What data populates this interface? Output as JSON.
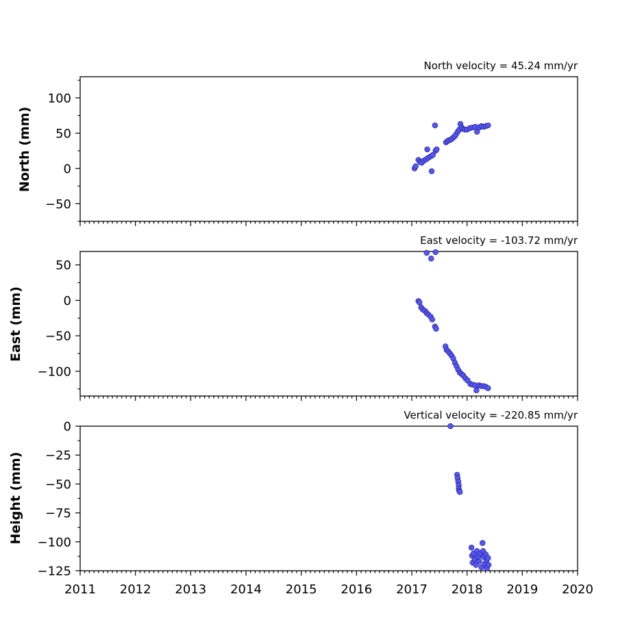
{
  "chart_data": [
    {
      "type": "scatter",
      "panel": "north",
      "title": "North velocity = 45.24 mm/yr",
      "ylabel": "North (mm)",
      "xlim": [
        2011,
        2020
      ],
      "ylim": [
        -75,
        130
      ],
      "yticks": [
        100,
        50,
        0,
        -50
      ],
      "ytick_labels": [
        "100",
        "50",
        "0",
        "−50"
      ],
      "grid": false,
      "color": "#5555ff",
      "points": [
        [
          2017.05,
          0
        ],
        [
          2017.07,
          3
        ],
        [
          2017.12,
          12
        ],
        [
          2017.15,
          9
        ],
        [
          2017.18,
          8
        ],
        [
          2017.22,
          11
        ],
        [
          2017.26,
          13
        ],
        [
          2017.28,
          27
        ],
        [
          2017.3,
          15
        ],
        [
          2017.34,
          17
        ],
        [
          2017.36,
          -4
        ],
        [
          2017.38,
          19
        ],
        [
          2017.42,
          61
        ],
        [
          2017.43,
          25
        ],
        [
          2017.45,
          27
        ],
        [
          2017.62,
          37
        ],
        [
          2017.65,
          39
        ],
        [
          2017.68,
          40
        ],
        [
          2017.71,
          41
        ],
        [
          2017.74,
          43
        ],
        [
          2017.77,
          45
        ],
        [
          2017.8,
          48
        ],
        [
          2017.83,
          52
        ],
        [
          2017.86,
          55
        ],
        [
          2017.88,
          63
        ],
        [
          2017.9,
          58
        ],
        [
          2017.93,
          56
        ],
        [
          2017.96,
          55
        ],
        [
          2018.0,
          55
        ],
        [
          2018.05,
          57
        ],
        [
          2018.1,
          58
        ],
        [
          2018.15,
          59
        ],
        [
          2018.18,
          52
        ],
        [
          2018.22,
          58
        ],
        [
          2018.26,
          60
        ],
        [
          2018.3,
          59
        ],
        [
          2018.34,
          60
        ],
        [
          2018.38,
          61
        ]
      ]
    },
    {
      "type": "scatter",
      "panel": "east",
      "title": "East velocity = -103.72 mm/yr",
      "ylabel": "East (mm)",
      "xlim": [
        2011,
        2020
      ],
      "ylim": [
        -135,
        69
      ],
      "yticks": [
        50,
        0,
        -50,
        -100
      ],
      "ytick_labels": [
        "50",
        "0",
        "−50",
        "−100"
      ],
      "grid": false,
      "color": "#5555ff",
      "points": [
        [
          2017.27,
          67
        ],
        [
          2017.35,
          59
        ],
        [
          2017.43,
          68
        ],
        [
          2017.12,
          -1
        ],
        [
          2017.14,
          -3
        ],
        [
          2017.17,
          -10
        ],
        [
          2017.2,
          -13
        ],
        [
          2017.24,
          -15
        ],
        [
          2017.27,
          -18
        ],
        [
          2017.3,
          -20
        ],
        [
          2017.34,
          -23
        ],
        [
          2017.37,
          -27
        ],
        [
          2017.42,
          -37
        ],
        [
          2017.44,
          -40
        ],
        [
          2017.61,
          -65
        ],
        [
          2017.63,
          -70
        ],
        [
          2017.66,
          -72
        ],
        [
          2017.69,
          -75
        ],
        [
          2017.72,
          -78
        ],
        [
          2017.75,
          -82
        ],
        [
          2017.78,
          -88
        ],
        [
          2017.81,
          -93
        ],
        [
          2017.84,
          -98
        ],
        [
          2017.87,
          -102
        ],
        [
          2017.9,
          -104
        ],
        [
          2017.93,
          -106
        ],
        [
          2017.97,
          -110
        ],
        [
          2018.01,
          -113
        ],
        [
          2018.06,
          -118
        ],
        [
          2018.1,
          -119
        ],
        [
          2018.15,
          -120
        ],
        [
          2018.17,
          -127
        ],
        [
          2018.22,
          -120
        ],
        [
          2018.26,
          -121
        ],
        [
          2018.3,
          -121
        ],
        [
          2018.34,
          -122
        ],
        [
          2018.38,
          -124
        ]
      ]
    },
    {
      "type": "scatter",
      "panel": "height",
      "title": "Vertical velocity = -220.85 mm/yr",
      "ylabel": "Height (mm)",
      "xlim": [
        2011,
        2020
      ],
      "ylim": [
        -125,
        0
      ],
      "xticks": [
        2011,
        2012,
        2013,
        2014,
        2015,
        2016,
        2017,
        2018,
        2019,
        2020
      ],
      "xtick_labels": [
        "2011",
        "2012",
        "2013",
        "2014",
        "2015",
        "2016",
        "2017",
        "2018",
        "2019",
        "2020"
      ],
      "yticks": [
        0,
        -25,
        -50,
        -75,
        -100,
        -125
      ],
      "ytick_labels": [
        "0",
        "−25",
        "−50",
        "−75",
        "−100",
        "−125"
      ],
      "grid": false,
      "color": "#5555ff",
      "points": [
        [
          2017.7,
          0
        ],
        [
          2017.82,
          -42
        ],
        [
          2017.83,
          -45
        ],
        [
          2017.84,
          -48
        ],
        [
          2017.85,
          -51
        ],
        [
          2017.85,
          -54
        ],
        [
          2017.86,
          -56
        ],
        [
          2017.87,
          -57
        ],
        [
          2018.08,
          -105
        ],
        [
          2018.09,
          -112
        ],
        [
          2018.1,
          -118
        ],
        [
          2018.12,
          -110
        ],
        [
          2018.14,
          -115
        ],
        [
          2018.16,
          -120
        ],
        [
          2018.18,
          -108
        ],
        [
          2018.2,
          -113
        ],
        [
          2018.22,
          -117
        ],
        [
          2018.24,
          -110
        ],
        [
          2018.26,
          -122
        ],
        [
          2018.28,
          -101
        ],
        [
          2018.29,
          -108
        ],
        [
          2018.3,
          -113
        ],
        [
          2018.32,
          -119
        ],
        [
          2018.34,
          -111
        ],
        [
          2018.35,
          -116
        ],
        [
          2018.36,
          -123
        ],
        [
          2018.38,
          -114
        ],
        [
          2018.39,
          -120
        ]
      ]
    }
  ]
}
